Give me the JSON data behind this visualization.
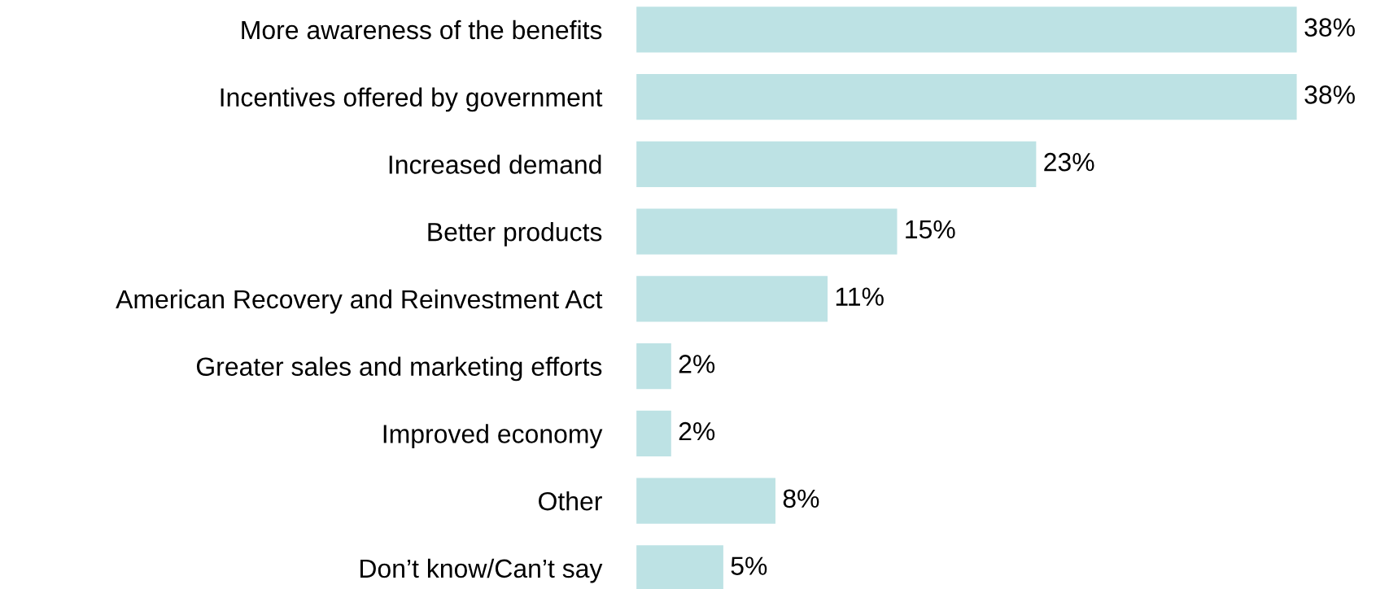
{
  "chart_data": {
    "type": "bar",
    "orientation": "horizontal",
    "categories": [
      "More awareness of the benefits",
      "Incentives offered by government",
      "Increased demand",
      "Better products",
      "American Recovery and Reinvestment Act",
      "Greater sales and marketing efforts",
      "Improved economy",
      "Other",
      "Don’t know/Can’t say"
    ],
    "values": [
      38,
      38,
      23,
      15,
      11,
      2,
      2,
      8,
      5
    ],
    "value_labels": [
      "38%",
      "38%",
      "23%",
      "15%",
      "11%",
      "2%",
      "2%",
      "8%",
      "5%"
    ],
    "color": "#bde2e4"
  }
}
